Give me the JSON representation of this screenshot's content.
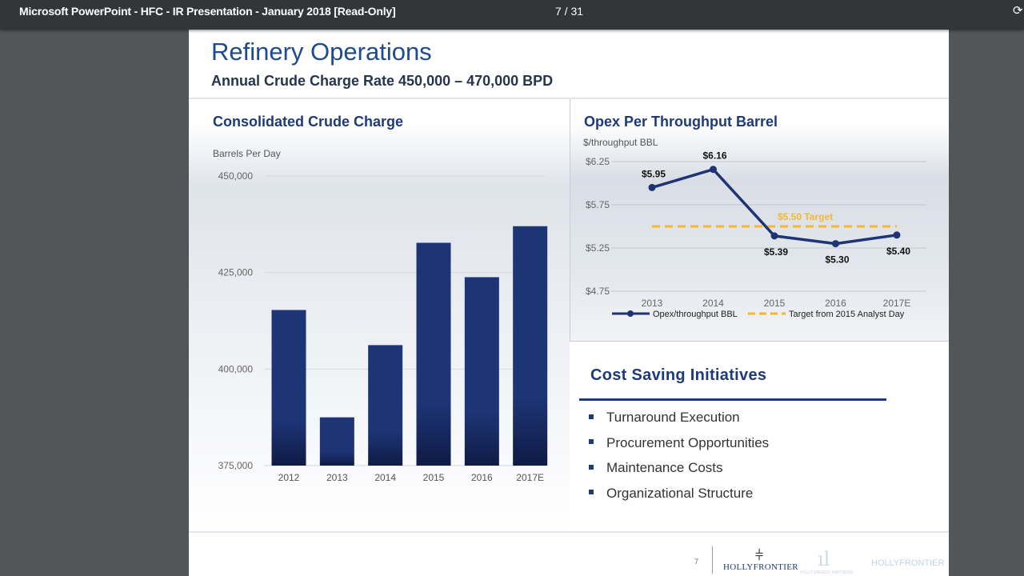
{
  "window": {
    "title": "Microsoft PowerPoint - HFC - IR Presentation - January 2018 [Read-Only]",
    "page_indicator": "7  /  31",
    "refresh_icon": "rotate-icon"
  },
  "slide": {
    "title": "Refinery Operations",
    "subtitle": "Annual Crude Charge Rate 450,000 – 470,000 BPD",
    "left_panel_title": "Consolidated Crude Charge",
    "right_panel_title": "Opex Per Throughput Barrel",
    "cost_title": "Cost Saving Initiatives",
    "cost_items": [
      "Turnaround Execution",
      "Procurement Opportunities",
      "Maintenance Costs",
      "Organizational Structure"
    ],
    "page_number": "7",
    "logo_text": "HOLLYFRONTIER",
    "logo3_text": "HOLLYFRONTIER",
    "logo2_small": "HOLLY ENERGY PARTNERS"
  },
  "chart_data": [
    {
      "type": "bar",
      "title": "Consolidated Crude Charge",
      "ylabel": "Barrels Per Day",
      "categories": [
        "2012",
        "2013",
        "2014",
        "2015",
        "2016",
        "2017E"
      ],
      "values": [
        415300,
        387500,
        406200,
        432700,
        423800,
        437000
      ],
      "ylim": [
        375000,
        450000
      ],
      "yticks": [
        "450,000",
        "425,000",
        "400,000",
        "375,000"
      ],
      "ytick_values": [
        450000,
        425000,
        400000,
        375000
      ],
      "grid": true,
      "colors": {
        "bar_top": "#1d3475",
        "bar_bottom": "#0f1b45"
      }
    },
    {
      "type": "line",
      "title": "Opex Per Throughput Barrel",
      "ylabel": "$/throughput BBL",
      "categories": [
        "2013",
        "2014",
        "2015",
        "2016",
        "2017E"
      ],
      "series": [
        {
          "name": "Opex/throughput BBL",
          "values": [
            5.95,
            6.16,
            5.39,
            5.3,
            5.4
          ],
          "labels": [
            "$5.95",
            "$6.16",
            "$5.39",
            "$5.30",
            "$5.40"
          ],
          "color": "#1e3473"
        },
        {
          "name": "Target from 2015 Analyst Day",
          "values": [
            5.5,
            5.5,
            5.5,
            5.5,
            5.5
          ],
          "color": "#f5b82e",
          "dashed": true
        }
      ],
      "target_label": "$5.50 Target",
      "ylim": [
        4.75,
        6.25
      ],
      "yticks": [
        "$6.25",
        "$5.75",
        "$5.25",
        "$4.75"
      ],
      "ytick_values": [
        6.25,
        5.75,
        5.25,
        4.75
      ],
      "grid": true,
      "legend": "bottom"
    }
  ]
}
